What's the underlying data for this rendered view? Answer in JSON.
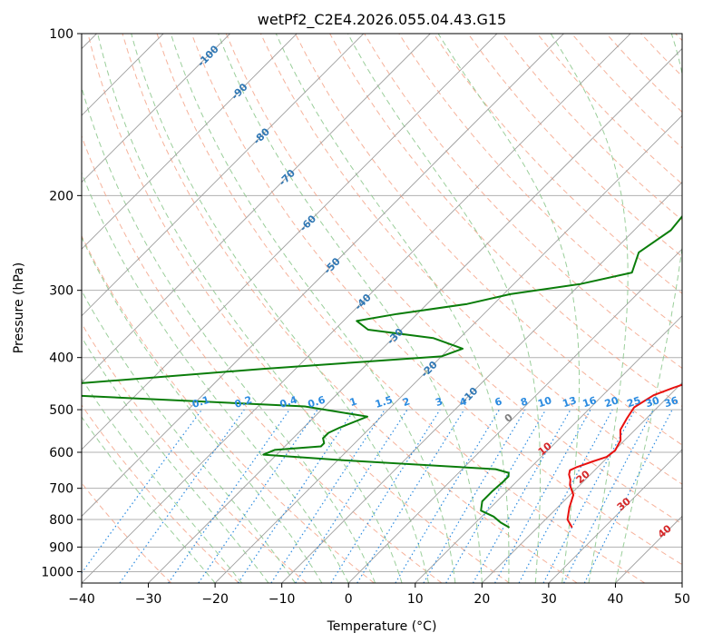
{
  "chart_data": {
    "type": "line",
    "title": "wetPf2_C2E4.2026.055.04.43.G15",
    "xlabel": "Temperature (°C)",
    "ylabel": "Pressure (hPa)",
    "xlim": [
      -40,
      50
    ],
    "ylim_hpa": [
      1050,
      100
    ],
    "x_ticks": [
      -40,
      -30,
      -20,
      -10,
      0,
      10,
      20,
      30,
      40,
      50
    ],
    "y_ticks": [
      100,
      200,
      300,
      400,
      500,
      600,
      700,
      800,
      900,
      1000
    ],
    "x_tick_labels": [
      "−40",
      "−30",
      "−20",
      "−10",
      "0",
      "10",
      "20",
      "30",
      "40",
      "50"
    ],
    "y_tick_labels": [
      "100",
      "200",
      "300",
      "400",
      "500",
      "600",
      "700",
      "800",
      "900",
      "1000"
    ],
    "colors": {
      "temperature": "#e8110f",
      "dewpoint": "#0a7d0a",
      "isotherm": "#9e9e9e",
      "dry_adiabat": "#f4a58a",
      "moist_adiabat": "#8fc98f",
      "mixing_ratio": "#2b8be0",
      "isotherm_label": "#2f77b4",
      "dry_adiabat_label": "#d62728",
      "zero_label": "#808080"
    },
    "series": [
      {
        "name": "Temperature",
        "points": [
          [
            25.2,
            828
          ],
          [
            23.3,
            800
          ],
          [
            21.8,
            760
          ],
          [
            20.5,
            720
          ],
          [
            18.5,
            690
          ],
          [
            17.8,
            675
          ],
          [
            16.8,
            660
          ],
          [
            16.3,
            648
          ],
          [
            16.8,
            640
          ],
          [
            18.3,
            625
          ],
          [
            19.8,
            612
          ],
          [
            20.1,
            595
          ],
          [
            19.4,
            570
          ],
          [
            17.8,
            545
          ],
          [
            17.1,
            520
          ],
          [
            16.5,
            495
          ],
          [
            17.6,
            470
          ],
          [
            19.5,
            455
          ],
          [
            21.8,
            440
          ],
          [
            23.3,
            422
          ],
          [
            22.3,
            395
          ],
          [
            18.0,
            355
          ],
          [
            13.0,
            315
          ],
          [
            8.0,
            280
          ],
          [
            -1.0,
            225
          ],
          [
            -7.5,
            195
          ],
          [
            -9.5,
            170
          ],
          [
            -11.5,
            150
          ],
          [
            -13.5,
            138
          ],
          [
            -15.3,
            126
          ],
          [
            -17.0,
            116
          ],
          [
            -20.5,
            105
          ],
          [
            -21.7,
            100
          ]
        ]
      },
      {
        "name": "Dewpoint",
        "points": [
          [
            15.8,
            828
          ],
          [
            13.7,
            810
          ],
          [
            11.8,
            790
          ],
          [
            9.0,
            770
          ],
          [
            7.8,
            740
          ],
          [
            7.8,
            710
          ],
          [
            8.0,
            680
          ],
          [
            8.0,
            665
          ],
          [
            7.5,
            655
          ],
          [
            5.0,
            645
          ],
          [
            -18.0,
            622
          ],
          [
            -32.0,
            606
          ],
          [
            -31.0,
            594
          ],
          [
            -24.6,
            585
          ],
          [
            -24.6,
            577
          ],
          [
            -25.5,
            565
          ],
          [
            -25.5,
            552
          ],
          [
            -24.6,
            540
          ],
          [
            -22.1,
            515
          ],
          [
            -33.0,
            493
          ],
          [
            -70.0,
            470
          ],
          [
            -75.0,
            452
          ],
          [
            -45.0,
            420
          ],
          [
            -20.0,
            398
          ],
          [
            -18.0,
            385
          ],
          [
            -24.0,
            368
          ],
          [
            -35.0,
            355
          ],
          [
            -38.0,
            342
          ],
          [
            -33.0,
            332
          ],
          [
            -24.0,
            318
          ],
          [
            -19.0,
            305
          ],
          [
            -10.0,
            292
          ],
          [
            -4.0,
            278
          ],
          [
            -6.0,
            255
          ],
          [
            -4.5,
            232
          ],
          [
            -5.0,
            215
          ],
          [
            -4.5,
            196
          ],
          [
            -5.5,
            178
          ],
          [
            -4.5,
            160
          ],
          [
            -8.0,
            145
          ],
          [
            -13.0,
            136
          ],
          [
            -15.7,
            126
          ],
          [
            -15.5,
            113
          ],
          [
            -17.0,
            103
          ],
          [
            -17.3,
            100
          ]
        ]
      }
    ],
    "isotherm_labels": [
      "-100",
      "-90",
      "-80",
      "-70",
      "-60",
      "-50",
      "-40",
      "-30",
      "-20",
      "-10"
    ],
    "mixing_ratio_labels": [
      "0.1",
      "0.2",
      "0.4",
      "0.6",
      "1",
      "1.5",
      "2",
      "3",
      "4",
      "6",
      "8",
      "10",
      "13",
      "16",
      "20",
      "25",
      "30",
      "36"
    ],
    "dry_adiabat_labels": [
      "0",
      "10",
      "20",
      "30",
      "40"
    ]
  }
}
